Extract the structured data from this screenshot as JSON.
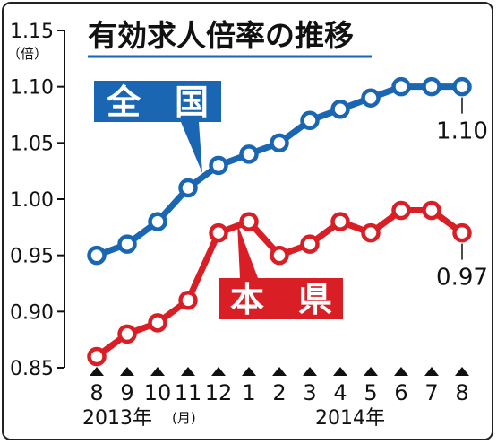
{
  "chart_data": {
    "type": "line",
    "title": "有効求人倍率の推移",
    "y_unit": "（倍）",
    "ylim": [
      0.85,
      1.15
    ],
    "y_ticks": [
      "0.85",
      "0.90",
      "0.95",
      "1.00",
      "1.05",
      "1.10",
      "1.15"
    ],
    "grid": false,
    "categories": [
      "8",
      "9",
      "10",
      "11",
      "12",
      "1",
      "2",
      "3",
      "4",
      "5",
      "6",
      "7",
      "8"
    ],
    "year_labels": {
      "first": "2013年",
      "first_month_suffix": "(月)",
      "second": "2014年"
    },
    "series": [
      {
        "name": "全　国",
        "color": "#1a66b3",
        "values": [
          0.95,
          0.96,
          0.98,
          1.01,
          1.03,
          1.04,
          1.05,
          1.07,
          1.08,
          1.09,
          1.1,
          1.1,
          1.1
        ],
        "end_label": "1.10"
      },
      {
        "name": "本　県",
        "color": "#d91e25",
        "values": [
          0.86,
          0.88,
          0.89,
          0.91,
          0.97,
          0.98,
          0.95,
          0.96,
          0.98,
          0.97,
          0.99,
          0.99,
          0.97
        ],
        "end_label": "0.97"
      }
    ]
  }
}
